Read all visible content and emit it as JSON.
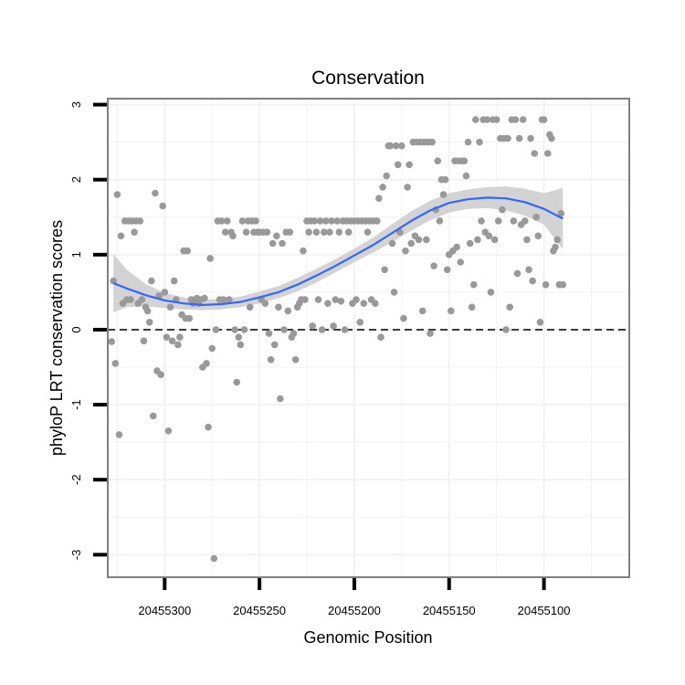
{
  "chart_data": {
    "type": "scatter",
    "title": "Conservation",
    "xlabel": "Genomic Position",
    "ylabel": "phyloP LRT conservation scores",
    "x_reversed": true,
    "xlim": [
      20455330,
      20455055
    ],
    "ylim": [
      -3.3,
      3.08
    ],
    "x_ticks": [
      20455300,
      20455250,
      20455200,
      20455150,
      20455100
    ],
    "x_tick_labels": [
      "20455300",
      "20455250",
      "20455200",
      "20455150",
      "20455100"
    ],
    "y_ticks": [
      3,
      2,
      1,
      0,
      -1,
      -2,
      -3
    ],
    "y_tick_labels": [
      "3",
      "2",
      "1",
      "0",
      "-1",
      "-2",
      "-3"
    ],
    "grid": true,
    "reference_line": {
      "y": 0,
      "style": "dashed"
    },
    "colors": {
      "points": "#999999",
      "smooth_line": "#3366ff",
      "confidence_band": "#d3d3d3",
      "frame": "#7f7f7f",
      "grid": "#f2f2f2"
    },
    "series": [
      {
        "name": "phyloP scores",
        "points": [
          [
            20455328,
            -0.16
          ],
          [
            20455327,
            0.65
          ],
          [
            20455326,
            -0.45
          ],
          [
            20455325,
            1.8
          ],
          [
            20455324,
            -1.4
          ],
          [
            20455323,
            1.25
          ],
          [
            20455322,
            0.35
          ],
          [
            20455321,
            1.45
          ],
          [
            20455320,
            0.4
          ],
          [
            20455319,
            1.45
          ],
          [
            20455318,
            0.4
          ],
          [
            20455317,
            1.45
          ],
          [
            20455316,
            1.3
          ],
          [
            20455315,
            1.45
          ],
          [
            20455314,
            0.35
          ],
          [
            20455313,
            1.45
          ],
          [
            20455312,
            0.4
          ],
          [
            20455311,
            -0.15
          ],
          [
            20455310,
            0.3
          ],
          [
            20455309,
            0.25
          ],
          [
            20455308,
            0.1
          ],
          [
            20455307,
            0.65
          ],
          [
            20455306,
            -1.15
          ],
          [
            20455305,
            1.82
          ],
          [
            20455304,
            -0.55
          ],
          [
            20455303,
            0.45
          ],
          [
            20455302,
            -0.6
          ],
          [
            20455301,
            1.65
          ],
          [
            20455300,
            0.5
          ],
          [
            20455299,
            -0.1
          ],
          [
            20455298,
            -1.35
          ],
          [
            20455297,
            0.3
          ],
          [
            20455296,
            -0.15
          ],
          [
            20455295,
            0.65
          ],
          [
            20455294,
            0.4
          ],
          [
            20455293,
            -0.2
          ],
          [
            20455292,
            -0.1
          ],
          [
            20455291,
            0.2
          ],
          [
            20455290,
            1.05
          ],
          [
            20455289,
            0.15
          ],
          [
            20455288,
            1.05
          ],
          [
            20455287,
            0.15
          ],
          [
            20455286,
            0.4
          ],
          [
            20455285,
            0.35
          ],
          [
            20455284,
            0.4
          ],
          [
            20455283,
            0.42
          ],
          [
            20455282,
            0.35
          ],
          [
            20455281,
            0.4
          ],
          [
            20455280,
            -0.5
          ],
          [
            20455279,
            0.42
          ],
          [
            20455278,
            -0.45
          ],
          [
            20455277,
            -1.3
          ],
          [
            20455276,
            0.95
          ],
          [
            20455275,
            -0.25
          ],
          [
            20455274,
            -3.05
          ],
          [
            20455273,
            0.0
          ],
          [
            20455272,
            1.45
          ],
          [
            20455271,
            0.4
          ],
          [
            20455270,
            1.45
          ],
          [
            20455269,
            0.4
          ],
          [
            20455268,
            1.3
          ],
          [
            20455267,
            1.45
          ],
          [
            20455266,
            0.4
          ],
          [
            20455265,
            1.3
          ],
          [
            20455264,
            1.25
          ],
          [
            20455263,
            0.0
          ],
          [
            20455262,
            -0.7
          ],
          [
            20455261,
            -0.1
          ],
          [
            20455260,
            -0.2
          ],
          [
            20455259,
            1.45
          ],
          [
            20455258,
            0.0
          ],
          [
            20455257,
            1.3
          ],
          [
            20455256,
            1.45
          ],
          [
            20455255,
            0.3
          ],
          [
            20455254,
            1.45
          ],
          [
            20455253,
            1.3
          ],
          [
            20455252,
            1.45
          ],
          [
            20455251,
            1.3
          ],
          [
            20455250,
            1.3
          ],
          [
            20455249,
            0.4
          ],
          [
            20455248,
            1.3
          ],
          [
            20455247,
            0.35
          ],
          [
            20455246,
            1.3
          ],
          [
            20455245,
            -0.05
          ],
          [
            20455244,
            -0.4
          ],
          [
            20455243,
            1.15
          ],
          [
            20455242,
            -0.2
          ],
          [
            20455241,
            1.25
          ],
          [
            20455240,
            0.3
          ],
          [
            20455239,
            -0.92
          ],
          [
            20455238,
            1.15
          ],
          [
            20455237,
            0.0
          ],
          [
            20455236,
            1.3
          ],
          [
            20455235,
            0.25
          ],
          [
            20455234,
            1.3
          ],
          [
            20455233,
            -0.1
          ],
          [
            20455232,
            -0.05
          ],
          [
            20455231,
            -0.4
          ],
          [
            20455230,
            0.3
          ],
          [
            20455229,
            0.35
          ],
          [
            20455228,
            0.4
          ],
          [
            20455227,
            1.05
          ],
          [
            20455226,
            0.4
          ],
          [
            20455225,
            1.45
          ],
          [
            20455224,
            1.3
          ],
          [
            20455223,
            1.45
          ],
          [
            20455222,
            0.05
          ],
          [
            20455221,
            1.45
          ],
          [
            20455220,
            1.3
          ],
          [
            20455219,
            0.4
          ],
          [
            20455218,
            1.45
          ],
          [
            20455217,
            0.0
          ],
          [
            20455216,
            1.3
          ],
          [
            20455215,
            1.45
          ],
          [
            20455214,
            0.35
          ],
          [
            20455213,
            1.3
          ],
          [
            20455212,
            1.45
          ],
          [
            20455211,
            0.05
          ],
          [
            20455210,
            0.4
          ],
          [
            20455209,
            1.45
          ],
          [
            20455208,
            1.3
          ],
          [
            20455207,
            0.38
          ],
          [
            20455206,
            1.45
          ],
          [
            20455205,
            0.0
          ],
          [
            20455204,
            1.45
          ],
          [
            20455203,
            1.3
          ],
          [
            20455202,
            1.45
          ],
          [
            20455201,
            0.35
          ],
          [
            20455200,
            1.45
          ],
          [
            20455199,
            0.4
          ],
          [
            20455198,
            1.45
          ],
          [
            20455197,
            0.1
          ],
          [
            20455196,
            1.45
          ],
          [
            20455195,
            0.35
          ],
          [
            20455194,
            1.45
          ],
          [
            20455193,
            1.3
          ],
          [
            20455192,
            1.45
          ],
          [
            20455191,
            0.4
          ],
          [
            20455190,
            1.45
          ],
          [
            20455189,
            0.35
          ],
          [
            20455188,
            1.45
          ],
          [
            20455187,
            1.75
          ],
          [
            20455186,
            -0.1
          ],
          [
            20455185,
            1.9
          ],
          [
            20455184,
            0.8
          ],
          [
            20455183,
            2.05
          ],
          [
            20455182,
            2.45
          ],
          [
            20455181,
            2.45
          ],
          [
            20455180,
            1.15
          ],
          [
            20455179,
            0.5
          ],
          [
            20455178,
            2.45
          ],
          [
            20455177,
            2.2
          ],
          [
            20455176,
            1.3
          ],
          [
            20455175,
            2.45
          ],
          [
            20455174,
            0.15
          ],
          [
            20455173,
            1.05
          ],
          [
            20455172,
            1.9
          ],
          [
            20455171,
            2.2
          ],
          [
            20455170,
            1.15
          ],
          [
            20455169,
            2.5
          ],
          [
            20455168,
            1.25
          ],
          [
            20455167,
            2.5
          ],
          [
            20455166,
            1.2
          ],
          [
            20455165,
            2.5
          ],
          [
            20455164,
            0.25
          ],
          [
            20455163,
            2.5
          ],
          [
            20455162,
            1.2
          ],
          [
            20455161,
            2.5
          ],
          [
            20455160,
            -0.05
          ],
          [
            20455159,
            2.5
          ],
          [
            20455158,
            0.85
          ],
          [
            20455157,
            1.6
          ],
          [
            20455156,
            2.25
          ],
          [
            20455155,
            1.45
          ],
          [
            20455154,
            2.0
          ],
          [
            20455153,
            1.8
          ],
          [
            20455152,
            2.0
          ],
          [
            20455151,
            0.8
          ],
          [
            20455150,
            1.0
          ],
          [
            20455149,
            0.25
          ],
          [
            20455148,
            1.05
          ],
          [
            20455147,
            2.25
          ],
          [
            20455146,
            1.1
          ],
          [
            20455145,
            2.25
          ],
          [
            20455144,
            0.9
          ],
          [
            20455143,
            2.25
          ],
          [
            20455142,
            2.25
          ],
          [
            20455141,
            2.05
          ],
          [
            20455140,
            2.5
          ],
          [
            20455139,
            1.15
          ],
          [
            20455138,
            0.3
          ],
          [
            20455137,
            0.6
          ],
          [
            20455136,
            2.8
          ],
          [
            20455135,
            1.2
          ],
          [
            20455134,
            2.5
          ],
          [
            20455133,
            1.45
          ],
          [
            20455132,
            2.8
          ],
          [
            20455131,
            1.3
          ],
          [
            20455130,
            2.8
          ],
          [
            20455129,
            1.25
          ],
          [
            20455128,
            0.5
          ],
          [
            20455127,
            2.8
          ],
          [
            20455126,
            1.2
          ],
          [
            20455125,
            2.8
          ],
          [
            20455124,
            1.45
          ],
          [
            20455123,
            2.55
          ],
          [
            20455122,
            1.6
          ],
          [
            20455121,
            2.55
          ],
          [
            20455120,
            0.0
          ],
          [
            20455119,
            2.55
          ],
          [
            20455118,
            0.3
          ],
          [
            20455117,
            2.8
          ],
          [
            20455116,
            1.45
          ],
          [
            20455115,
            2.8
          ],
          [
            20455114,
            0.75
          ],
          [
            20455113,
            2.55
          ],
          [
            20455112,
            1.4
          ],
          [
            20455111,
            2.8
          ],
          [
            20455110,
            1.45
          ],
          [
            20455109,
            1.2
          ],
          [
            20455108,
            0.8
          ],
          [
            20455107,
            2.55
          ],
          [
            20455106,
            0.65
          ],
          [
            20455105,
            2.35
          ],
          [
            20455104,
            1.5
          ],
          [
            20455103,
            1.25
          ],
          [
            20455102,
            0.1
          ],
          [
            20455101,
            2.8
          ],
          [
            20455100,
            2.8
          ],
          [
            20455099,
            0.6
          ],
          [
            20455098,
            2.35
          ],
          [
            20455097,
            2.6
          ],
          [
            20455096,
            2.55
          ],
          [
            20455095,
            1.05
          ],
          [
            20455094,
            1.1
          ],
          [
            20455093,
            1.2
          ],
          [
            20455092,
            0.6
          ],
          [
            20455091,
            1.55
          ],
          [
            20455090,
            0.6
          ]
        ]
      }
    ],
    "smooth_fit": {
      "method": "loess",
      "x": [
        20455327,
        20455320,
        20455310,
        20455300,
        20455290,
        20455280,
        20455270,
        20455260,
        20455250,
        20455240,
        20455230,
        20455220,
        20455210,
        20455200,
        20455190,
        20455180,
        20455170,
        20455160,
        20455150,
        20455140,
        20455130,
        20455120,
        20455110,
        20455100,
        20455090
      ],
      "y": [
        0.62,
        0.55,
        0.46,
        0.39,
        0.35,
        0.33,
        0.34,
        0.37,
        0.43,
        0.5,
        0.6,
        0.72,
        0.85,
        0.99,
        1.13,
        1.29,
        1.45,
        1.59,
        1.69,
        1.74,
        1.76,
        1.75,
        1.7,
        1.61,
        1.48
      ],
      "lower": [
        0.23,
        0.3,
        0.31,
        0.29,
        0.27,
        0.26,
        0.27,
        0.3,
        0.35,
        0.42,
        0.51,
        0.63,
        0.76,
        0.9,
        1.03,
        1.17,
        1.32,
        1.46,
        1.56,
        1.61,
        1.62,
        1.59,
        1.52,
        1.4,
        1.07
      ],
      "upper": [
        1.01,
        0.8,
        0.61,
        0.49,
        0.43,
        0.4,
        0.41,
        0.44,
        0.51,
        0.58,
        0.69,
        0.81,
        0.94,
        1.08,
        1.23,
        1.41,
        1.58,
        1.72,
        1.82,
        1.87,
        1.9,
        1.91,
        1.88,
        1.82,
        1.89
      ]
    }
  }
}
